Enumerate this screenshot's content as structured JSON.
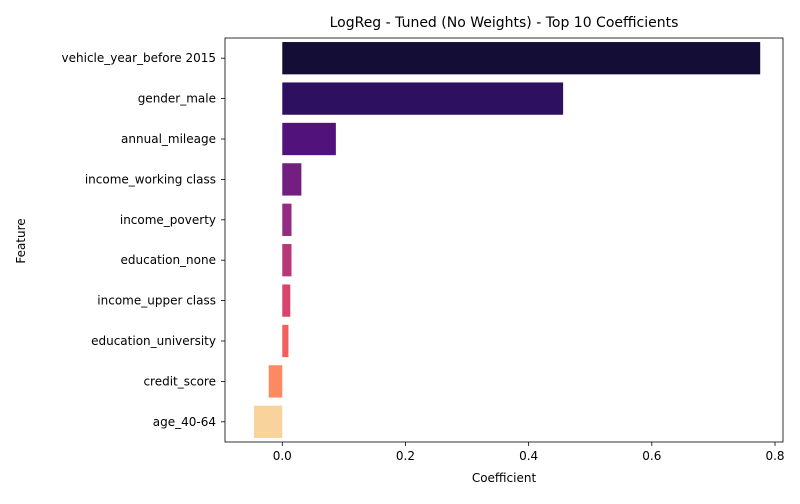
{
  "chart_data": {
    "type": "bar",
    "orientation": "horizontal",
    "title": "LogReg - Tuned (No Weights) - Top 10 Coefficients",
    "xlabel": "Coefficient",
    "ylabel": "Feature",
    "categories": [
      "vehicle_year_before 2015",
      "gender_male",
      "annual_mileage",
      "income_working class",
      "income_poverty",
      "education_none",
      "income_upper class",
      "education_university",
      "credit_score",
      "age_40-64"
    ],
    "values": [
      0.776,
      0.456,
      0.087,
      0.031,
      0.015,
      0.015,
      0.013,
      0.01,
      -0.022,
      -0.046
    ],
    "colors": [
      "#140e36",
      "#2d1160",
      "#51127c",
      "#721f81",
      "#932b80",
      "#b73779",
      "#d8456c",
      "#f1605d",
      "#fc8961",
      "#f8d49c"
    ],
    "xlim": [
      -0.093,
      0.813
    ],
    "xticks": [
      0.0,
      0.2,
      0.4,
      0.6,
      0.8
    ],
    "xtick_labels": [
      "0.0",
      "0.2",
      "0.4",
      "0.6",
      "0.8"
    ],
    "grid": false,
    "legend": "none"
  }
}
